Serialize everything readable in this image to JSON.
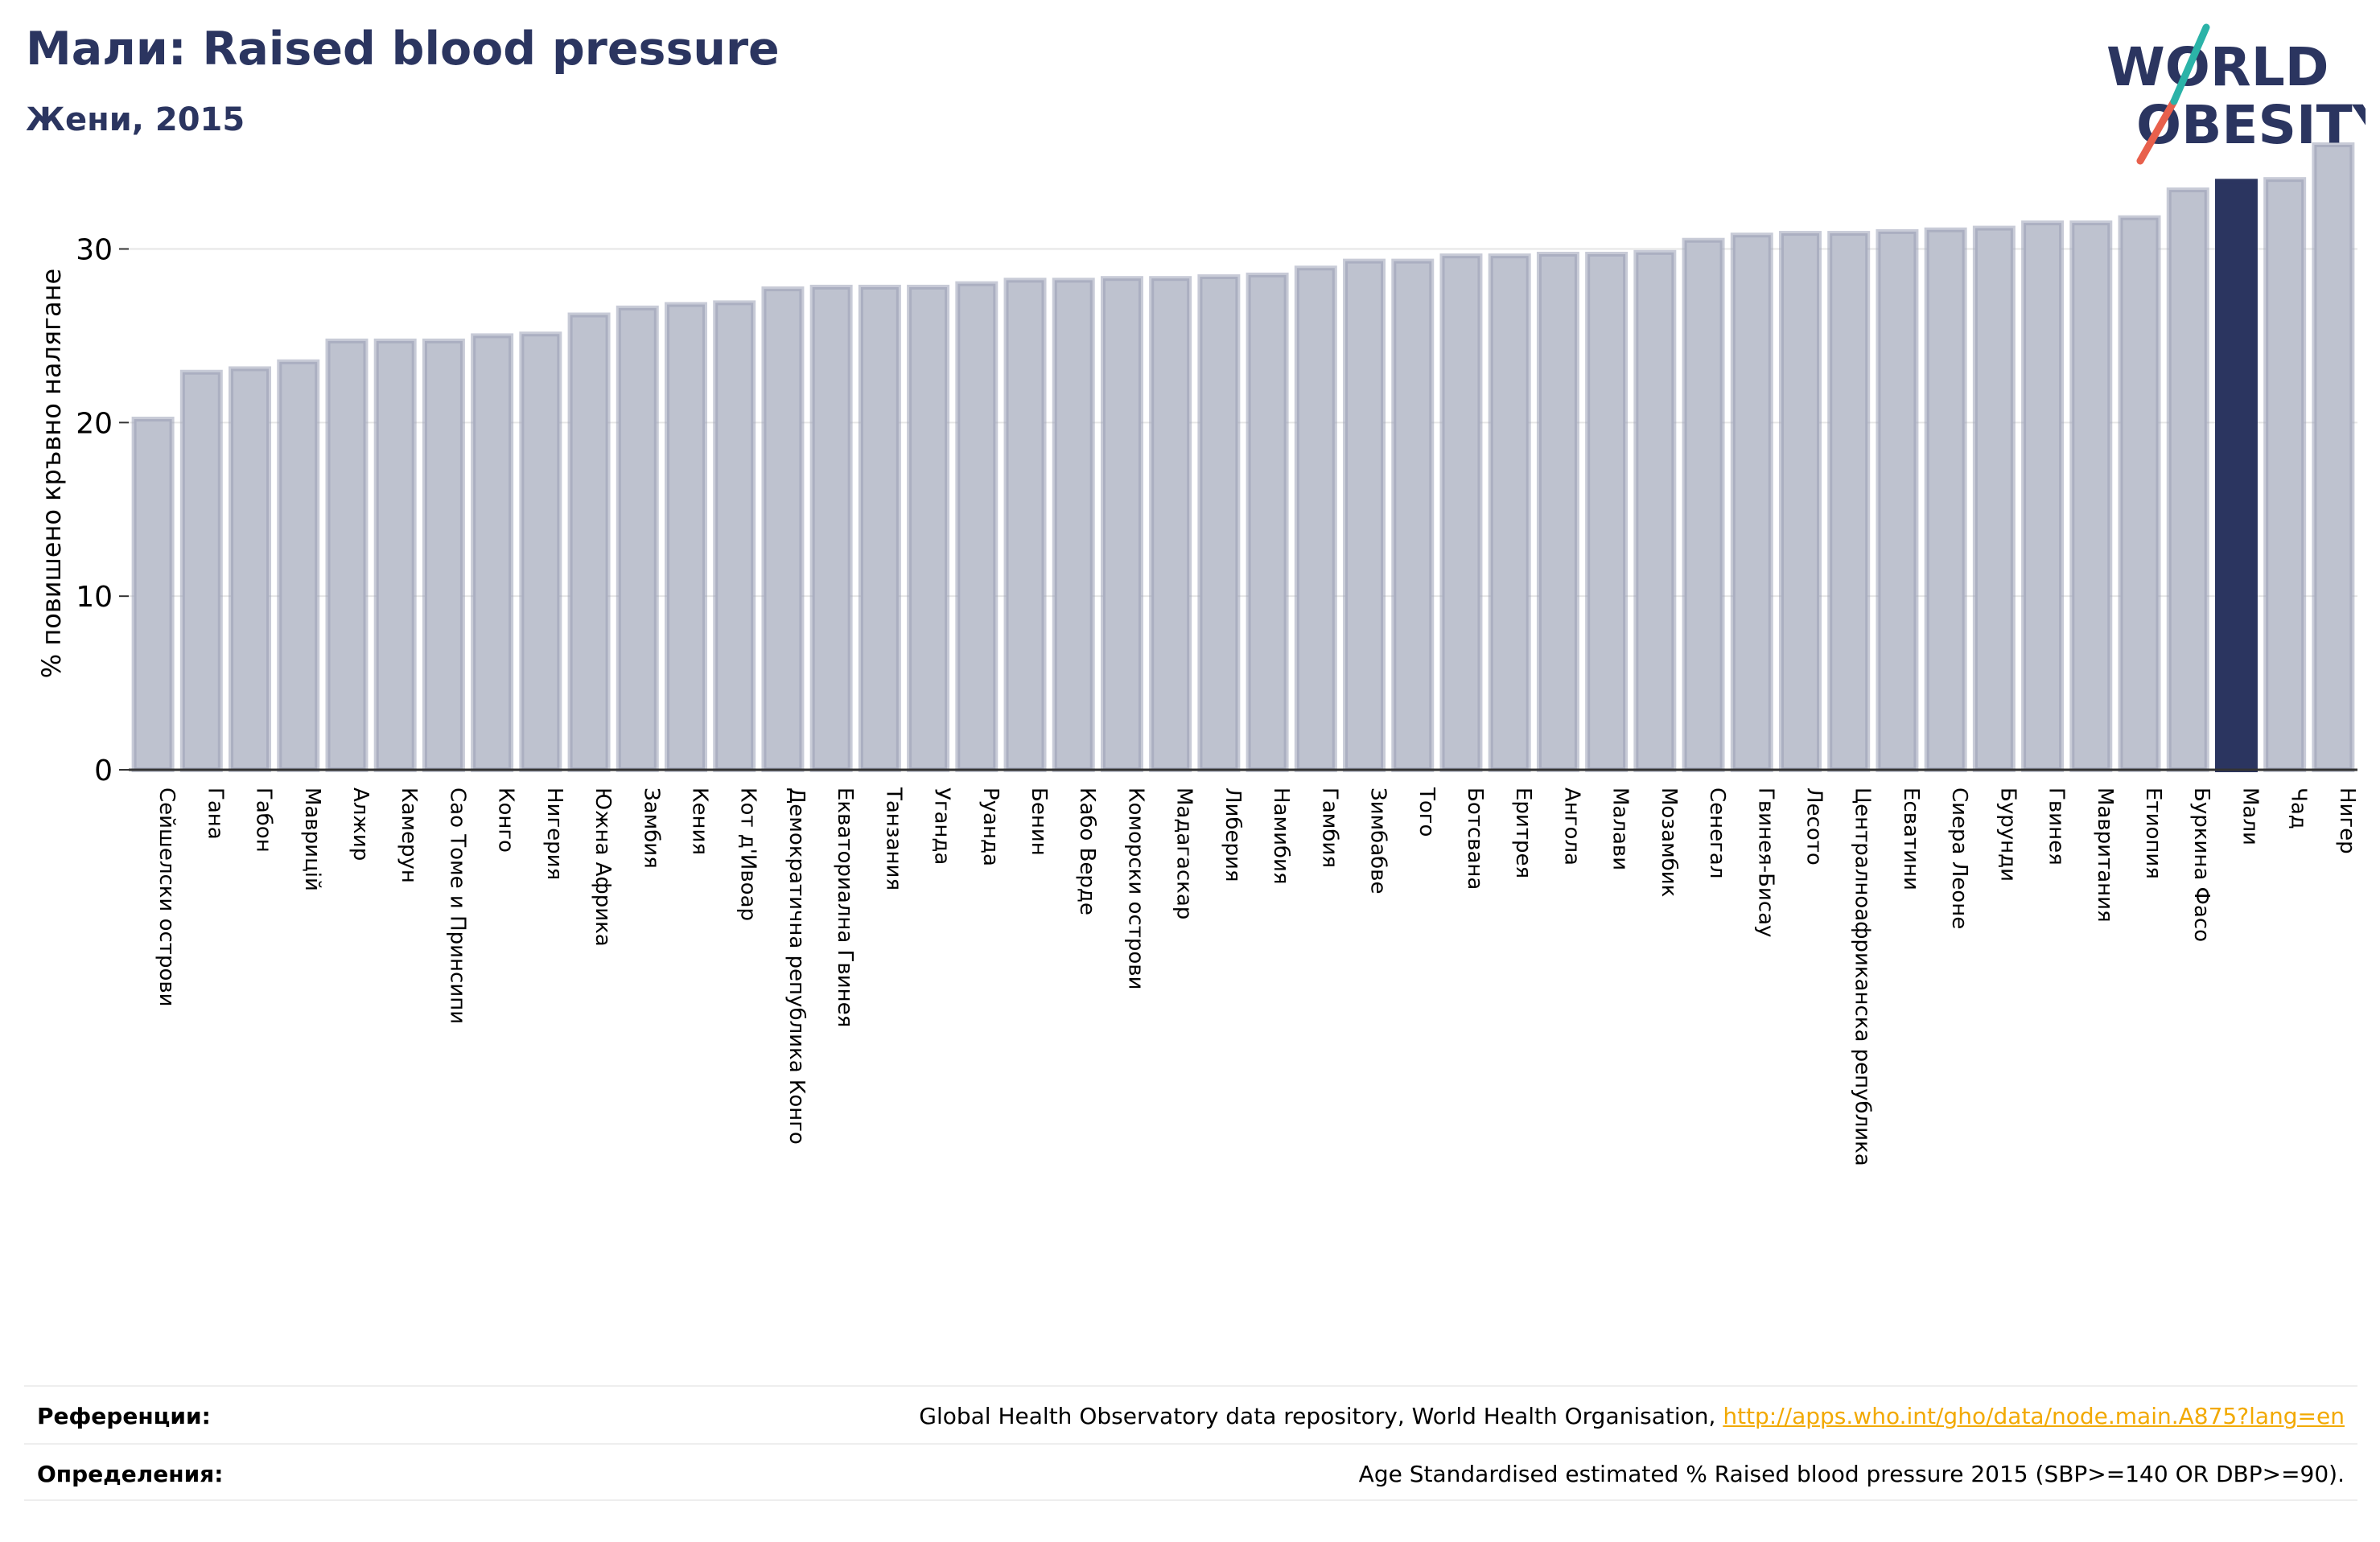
{
  "header": {
    "title": "Мали: Raised blood pressure",
    "subtitle": "Жени, 2015"
  },
  "logo": {
    "line1": "WORLD",
    "line2": "OBESITY"
  },
  "chart_data": {
    "type": "bar",
    "ylabel": "% повишено кръвно налягане",
    "ylim": [
      0,
      36
    ],
    "yticks": [
      0,
      10,
      20,
      30
    ],
    "grid": true,
    "highlight": "Мали",
    "colors": {
      "bar": "#bec2cf",
      "bar_edge": "#9aa0b6",
      "highlight": "#2b3560",
      "grid": "#e6e6e6"
    },
    "categories": [
      "Сейшелски острови",
      "Гана",
      "Габон",
      "Маврицій",
      "Алжир",
      "Камерун",
      "Сао Томе и Принсипи",
      "Конго",
      "Нигерия",
      "Южна Африка",
      "Замбия",
      "Кения",
      "Кот д'Ивоар",
      "Демократична република Конго",
      "Екваториална Гвинея",
      "Танзания",
      "Уганда",
      "Руанда",
      "Бенин",
      "Кабо Верде",
      "Коморски острови",
      "Мадагаскар",
      "Либерия",
      "Намибия",
      "Гамбия",
      "Зимбабве",
      "Того",
      "Ботсвана",
      "Еритрея",
      "Ангола",
      "Малави",
      "Мозамбик",
      "Сенегал",
      "Гвинея-Бисау",
      "Лесото",
      "Централноафриканска република",
      "Есватини",
      "Сиера Леоне",
      "Бурунди",
      "Гвинея",
      "Мавритания",
      "Етиопия",
      "Буркина Фасо",
      "Мали",
      "Чад",
      "Нигер"
    ],
    "values": [
      20.2,
      22.9,
      23.1,
      23.5,
      24.7,
      24.7,
      24.7,
      25.0,
      25.1,
      26.2,
      26.6,
      26.8,
      26.9,
      27.7,
      27.8,
      27.8,
      27.8,
      28.0,
      28.2,
      28.2,
      28.3,
      28.3,
      28.4,
      28.5,
      28.9,
      29.3,
      29.3,
      29.6,
      29.6,
      29.7,
      29.7,
      29.8,
      30.5,
      30.8,
      30.9,
      30.9,
      31.0,
      31.1,
      31.2,
      31.5,
      31.5,
      31.8,
      33.4,
      33.9,
      34.0,
      36.0
    ]
  },
  "references": {
    "label": "Референции:",
    "text": "Global Health Observatory data repository, World Health Organisation, ",
    "link": "http://apps.who.int/gho/data/node.main.A875?lang=en"
  },
  "definitions": {
    "label": "Определения:",
    "text": "Age Standardised estimated % Raised blood pressure 2015 (SBP>=140 OR DBP>=90)."
  }
}
